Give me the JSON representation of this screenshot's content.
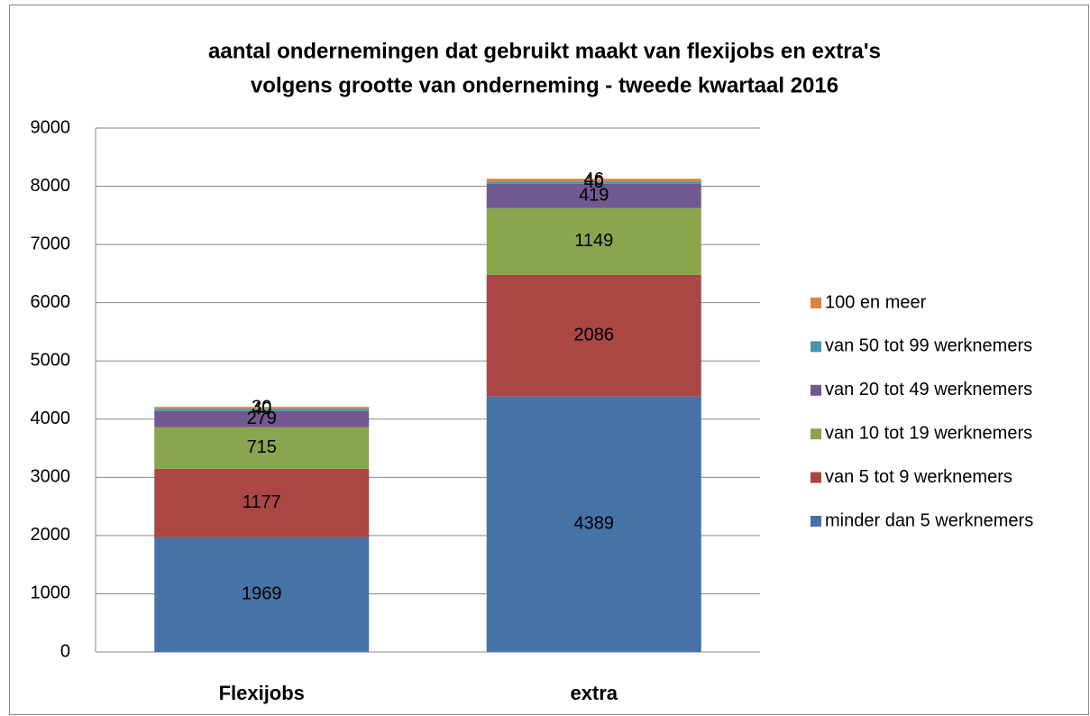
{
  "chart_data": {
    "type": "stacked_bar",
    "title": [
      "aantal ondernemingen dat gebruikt maakt van flexijobs en extra's",
      "volgens grootte van onderneming - tweede kwartaal 2016"
    ],
    "categories": [
      "Flexijobs",
      "extra"
    ],
    "series": [
      {
        "name": "minder dan 5 werknemers",
        "color": "#4572a7",
        "values": [
          1969,
          4389
        ]
      },
      {
        "name": "van 5 tot 9 werknemers",
        "color": "#aa4643",
        "values": [
          1177,
          2086
        ]
      },
      {
        "name": "van 10 tot 19 werknemers",
        "color": "#89a54e",
        "values": [
          715,
          1149
        ]
      },
      {
        "name": "van 20 tot 49 werknemers",
        "color": "#71588f",
        "values": [
          279,
          419
        ]
      },
      {
        "name": "van 50 tot 99 werknemers",
        "color": "#4198af",
        "values": [
          40,
          40
        ]
      },
      {
        "name": "100 en meer",
        "color": "#db843d",
        "values": [
          30,
          46
        ]
      }
    ],
    "ylim": [
      0,
      9000
    ],
    "yticks": [
      0,
      1000,
      2000,
      3000,
      4000,
      5000,
      6000,
      7000,
      8000,
      9000
    ],
    "grid": true,
    "legend": "right"
  }
}
